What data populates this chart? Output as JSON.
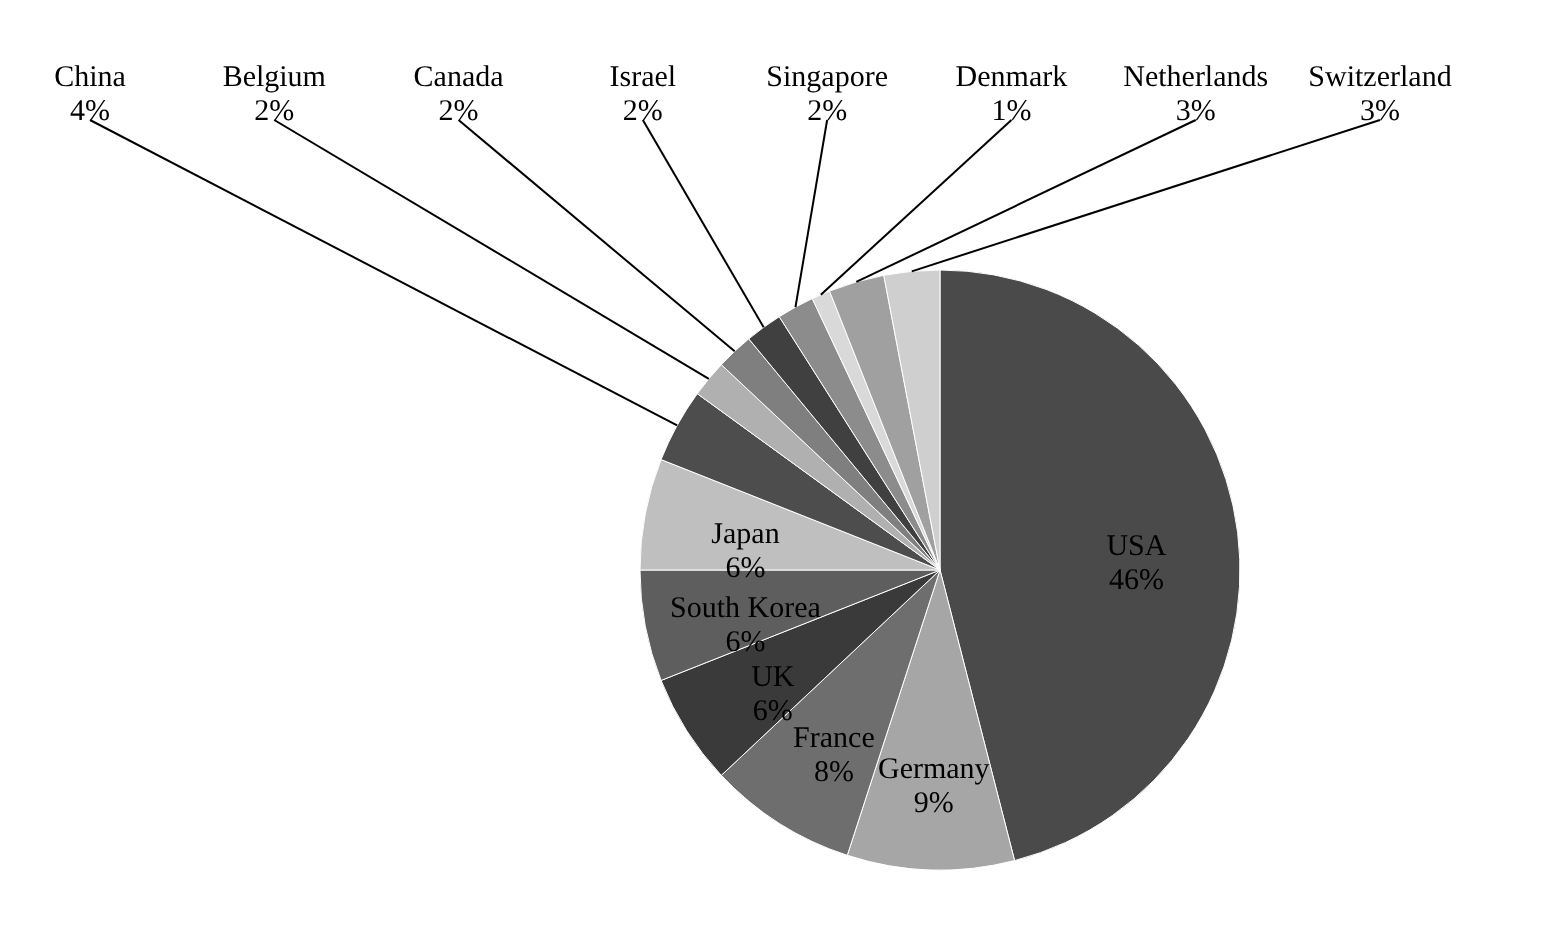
{
  "chart_data": {
    "type": "pie",
    "categories": [
      "USA",
      "Germany",
      "France",
      "UK",
      "South Korea",
      "Japan",
      "China",
      "Belgium",
      "Canada",
      "Israel",
      "Singapore",
      "Denmark",
      "Netherlands",
      "Switzerland"
    ],
    "values": [
      46,
      9,
      8,
      6,
      6,
      6,
      4,
      2,
      2,
      2,
      2,
      1,
      3,
      3
    ],
    "value_labels": [
      "46%",
      "9%",
      "8%",
      "6%",
      "6%",
      "6%",
      "4%",
      "2%",
      "2%",
      "2%",
      "2%",
      "1%",
      "3%",
      "3%"
    ],
    "colors": [
      "#4a4a4a",
      "#a6a6a6",
      "#6e6e6e",
      "#3a3a3a",
      "#5e5e5e",
      "#bfbfbf",
      "#4d4d4d",
      "#b0b0b0",
      "#7f7f7f",
      "#404040",
      "#8c8c8c",
      "#d9d9d9",
      "#a0a0a0",
      "#cfcfcf"
    ]
  }
}
